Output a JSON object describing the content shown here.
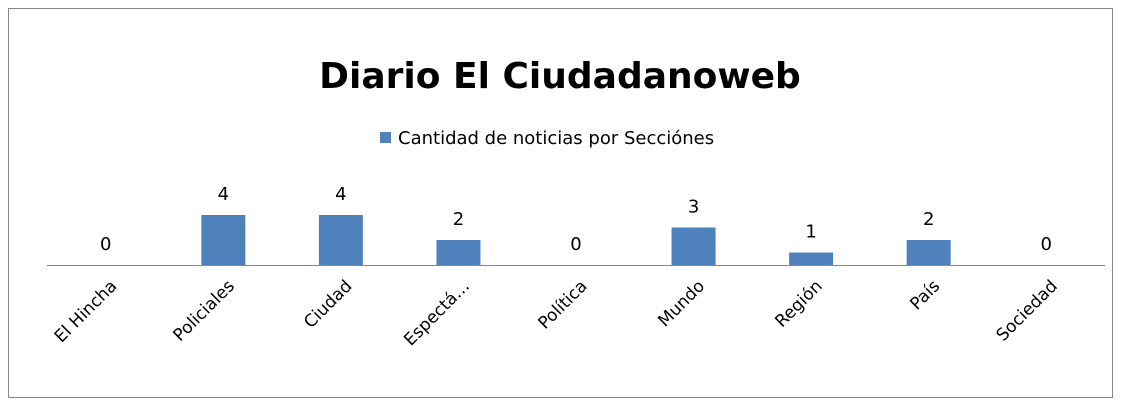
{
  "chart_data": {
    "type": "bar",
    "title": "Diario El Ciudadanoweb",
    "categories": [
      "El Hincha",
      "Policiales",
      "Ciudad",
      "Espectá…",
      "Política",
      "Mundo",
      "Región",
      "País",
      "Sociedad"
    ],
    "series": [
      {
        "name": "Cantidad de noticias por Secciónes",
        "color": "#4f81bd",
        "values": [
          0,
          4,
          4,
          2,
          0,
          3,
          1,
          2,
          0
        ]
      }
    ],
    "legend": "top",
    "grid": false
  }
}
